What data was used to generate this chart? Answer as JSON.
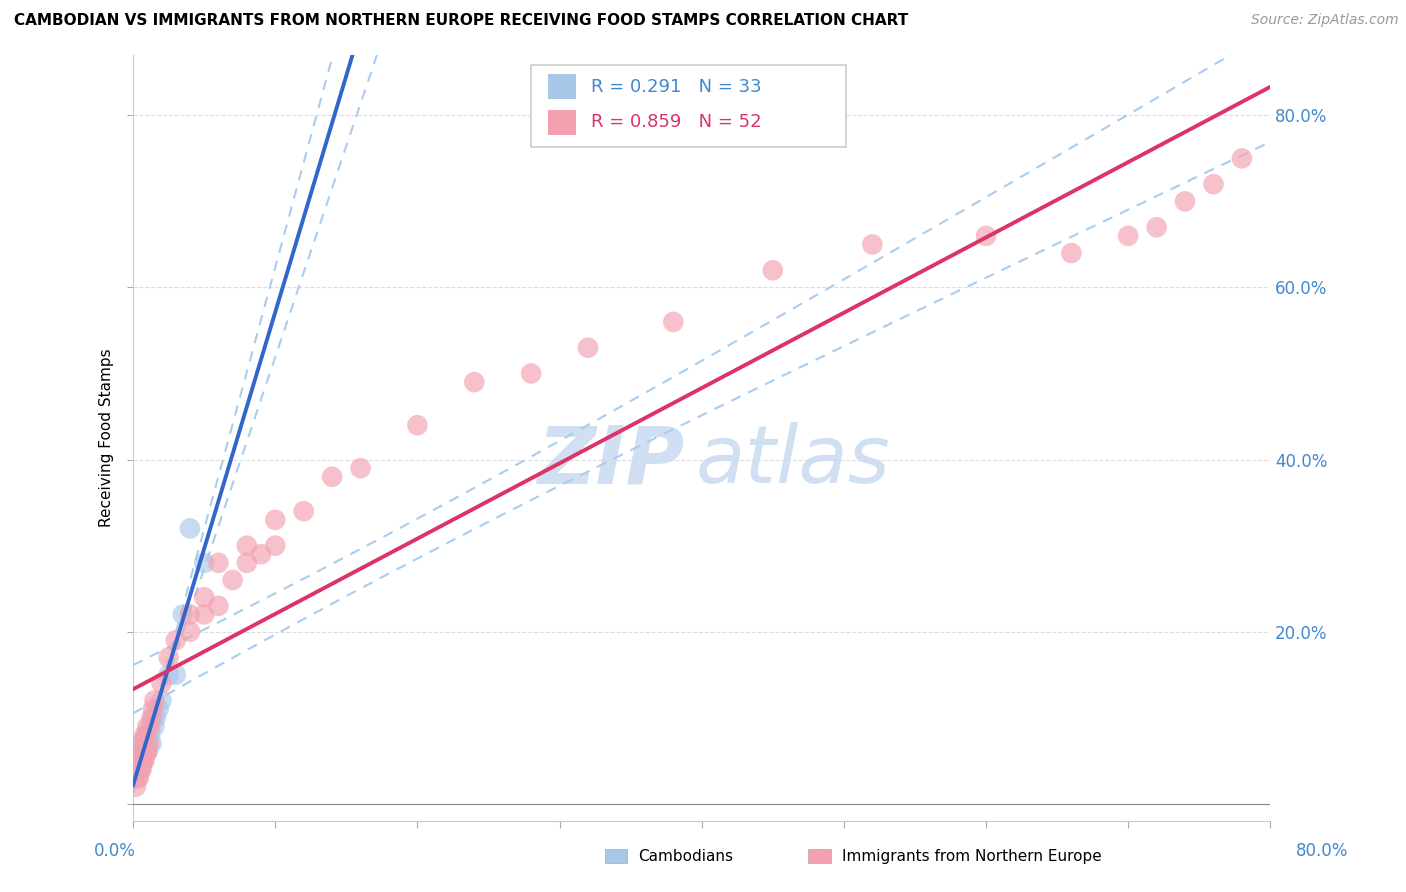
{
  "title": "CAMBODIAN VS IMMIGRANTS FROM NORTHERN EUROPE RECEIVING FOOD STAMPS CORRELATION CHART",
  "source": "Source: ZipAtlas.com",
  "ylabel": "Receiving Food Stamps",
  "xlim": [
    0,
    0.8
  ],
  "ylim": [
    -0.02,
    0.87
  ],
  "series1_label": "Cambodians",
  "series1_color": "#a8c8e8",
  "series1_R": 0.291,
  "series1_N": 33,
  "series2_label": "Immigrants from Northern Europe",
  "series2_color": "#f4a0b0",
  "series2_R": 0.859,
  "series2_N": 52,
  "line1_color": "#3366cc",
  "line2_color": "#dd3366",
  "ci_color": "#aaccee",
  "watermark_color": "#c8daf0",
  "background_color": "#ffffff",
  "grid_color": "#dddddd",
  "ytick_color": "#4488cc",
  "title_fontsize": 11,
  "source_fontsize": 10,
  "tick_fontsize": 12,
  "cambodian_x": [
    0.002,
    0.003,
    0.003,
    0.004,
    0.004,
    0.005,
    0.005,
    0.005,
    0.006,
    0.006,
    0.006,
    0.007,
    0.007,
    0.007,
    0.008,
    0.008,
    0.009,
    0.009,
    0.01,
    0.01,
    0.011,
    0.012,
    0.013,
    0.014,
    0.015,
    0.016,
    0.018,
    0.02,
    0.025,
    0.03,
    0.035,
    0.04,
    0.05
  ],
  "cambodian_y": [
    0.04,
    0.05,
    0.06,
    0.05,
    0.07,
    0.04,
    0.05,
    0.06,
    0.05,
    0.06,
    0.07,
    0.05,
    0.06,
    0.07,
    0.06,
    0.07,
    0.06,
    0.07,
    0.06,
    0.08,
    0.07,
    0.08,
    0.07,
    0.1,
    0.09,
    0.1,
    0.11,
    0.12,
    0.15,
    0.15,
    0.22,
    0.32,
    0.28
  ],
  "ne_x": [
    0.002,
    0.003,
    0.004,
    0.005,
    0.005,
    0.006,
    0.006,
    0.007,
    0.007,
    0.008,
    0.008,
    0.009,
    0.009,
    0.01,
    0.01,
    0.011,
    0.012,
    0.013,
    0.014,
    0.015,
    0.02,
    0.025,
    0.03,
    0.04,
    0.05,
    0.06,
    0.07,
    0.08,
    0.09,
    0.1,
    0.12,
    0.14,
    0.16,
    0.2,
    0.24,
    0.28,
    0.32,
    0.38,
    0.45,
    0.52,
    0.6,
    0.66,
    0.7,
    0.72,
    0.74,
    0.76,
    0.78,
    0.04,
    0.05,
    0.06,
    0.08,
    0.1
  ],
  "ne_y": [
    0.02,
    0.03,
    0.03,
    0.04,
    0.05,
    0.04,
    0.06,
    0.05,
    0.07,
    0.05,
    0.08,
    0.06,
    0.08,
    0.06,
    0.09,
    0.07,
    0.09,
    0.1,
    0.11,
    0.12,
    0.14,
    0.17,
    0.19,
    0.22,
    0.24,
    0.23,
    0.26,
    0.28,
    0.29,
    0.3,
    0.34,
    0.38,
    0.39,
    0.44,
    0.49,
    0.5,
    0.53,
    0.56,
    0.62,
    0.65,
    0.66,
    0.64,
    0.66,
    0.67,
    0.7,
    0.72,
    0.75,
    0.2,
    0.22,
    0.28,
    0.3,
    0.33
  ]
}
